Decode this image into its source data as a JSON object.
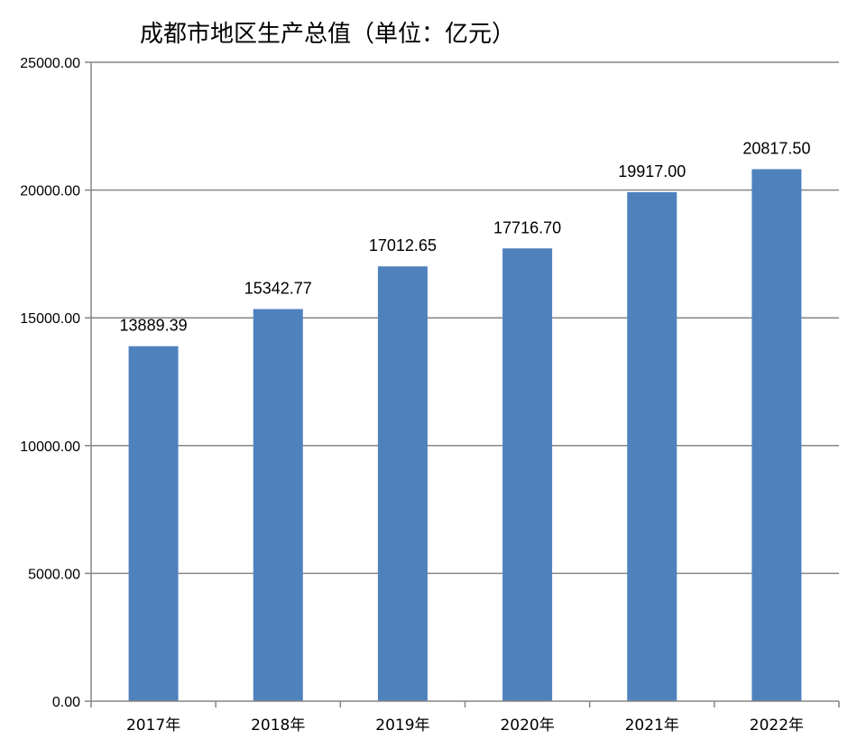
{
  "chart_data": {
    "type": "bar",
    "title": "成都市地区生产总值（单位：亿元）",
    "categories": [
      "2017年",
      "2018年",
      "2019年",
      "2020年",
      "2021年",
      "2022年"
    ],
    "values": [
      13889.39,
      15342.77,
      17012.65,
      17716.7,
      19917.0,
      20817.5
    ],
    "value_labels": [
      "13889.39",
      "15342.77",
      "17012.65",
      "17716.70",
      "19917.00",
      "20817.50"
    ],
    "yticks": [
      0,
      5000,
      10000,
      15000,
      20000,
      25000
    ],
    "ytick_labels": [
      "0.00",
      "5000.00",
      "10000.00",
      "15000.00",
      "20000.00",
      "25000.00"
    ],
    "ylim": [
      0,
      25000
    ],
    "xlabel": "",
    "ylabel": "",
    "grid": true,
    "legend": "none",
    "bar_color": "#4f81bd",
    "grid_color": "#868686"
  }
}
